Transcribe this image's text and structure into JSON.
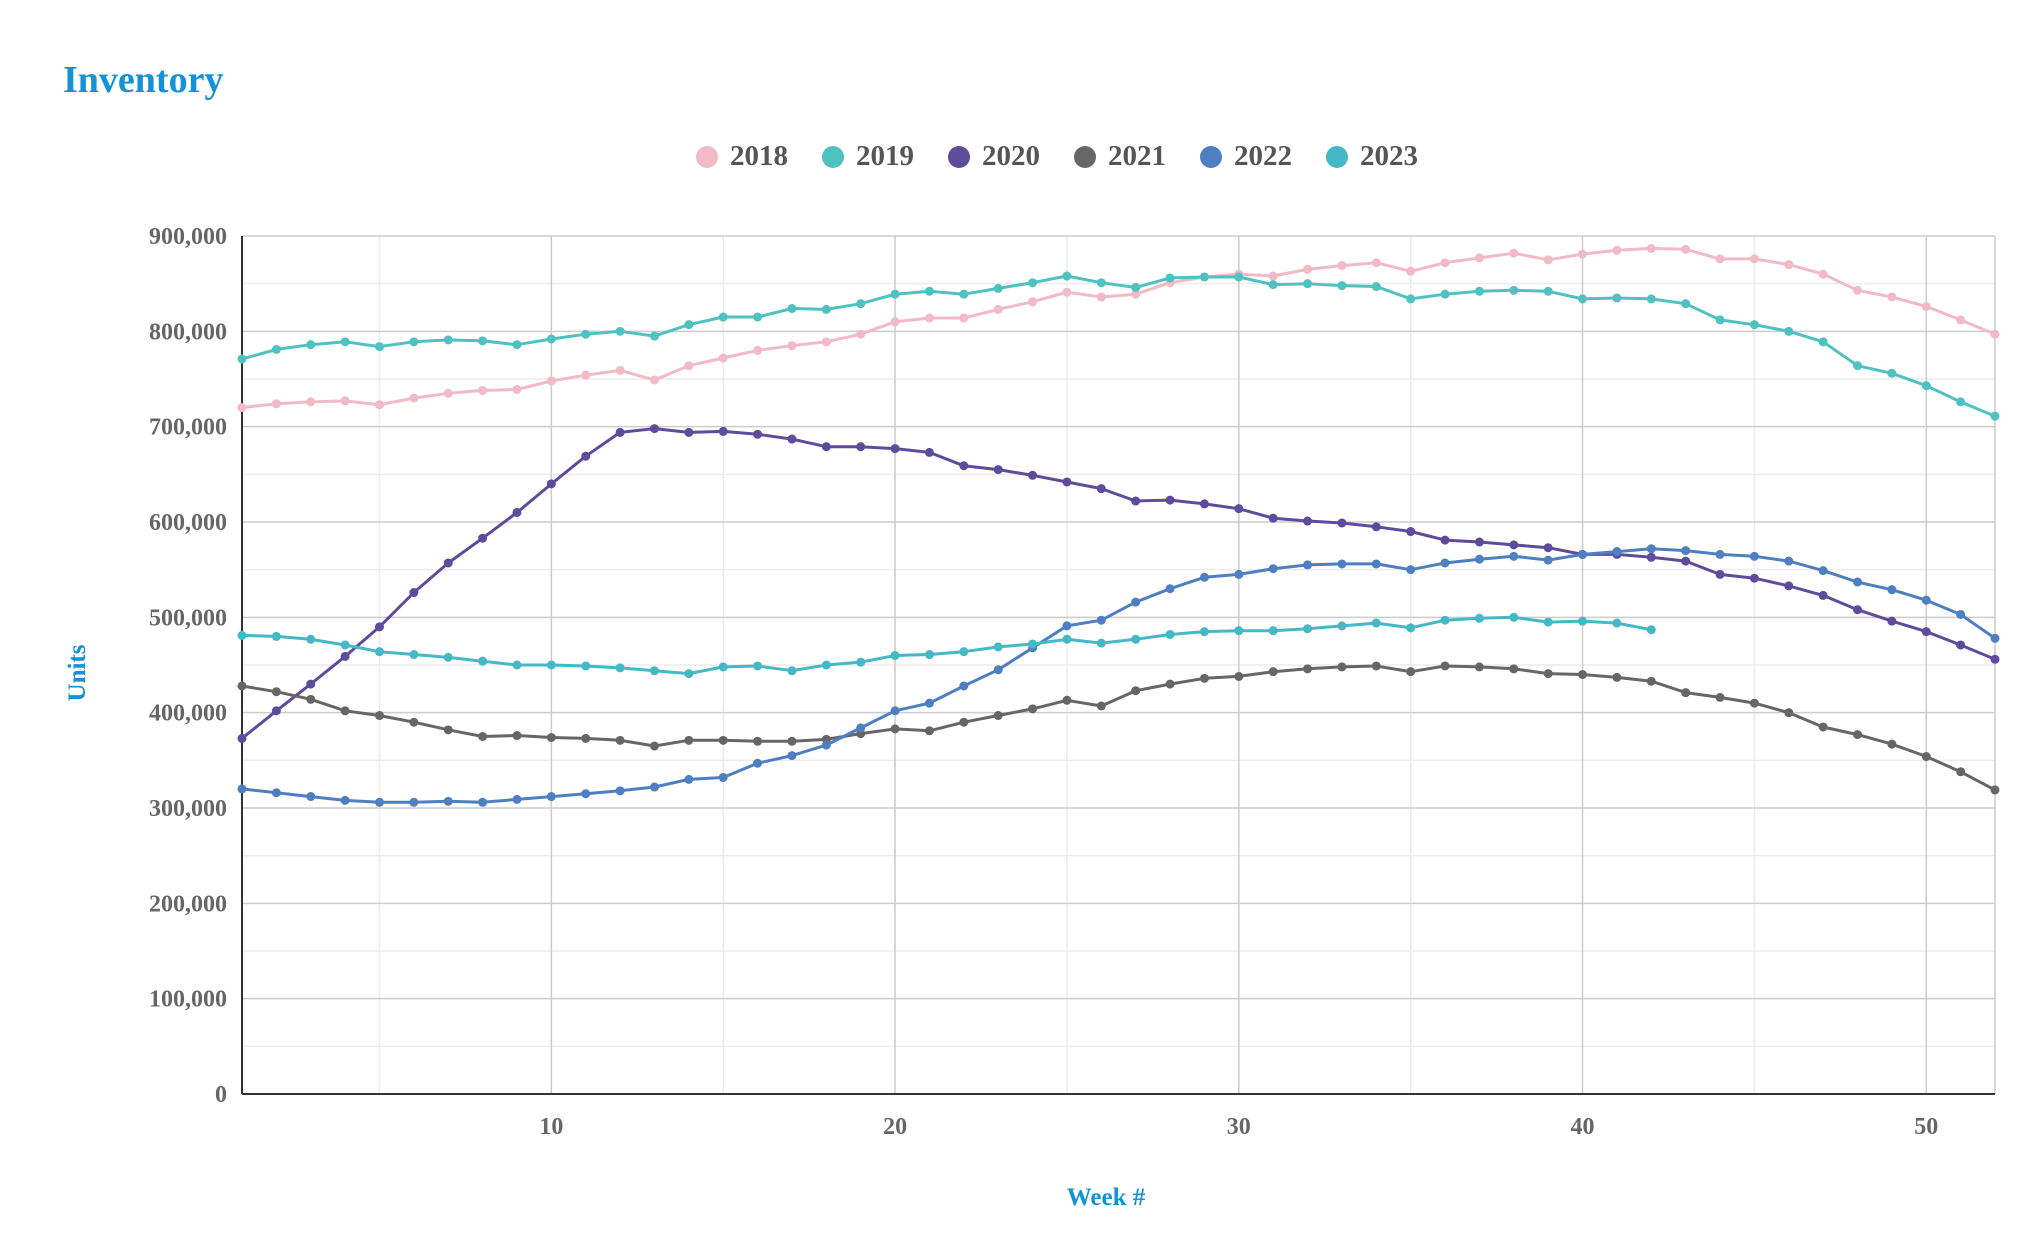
{
  "title": "Inventory",
  "chart_data": {
    "type": "line",
    "title": "Inventory",
    "xlabel": "Week #",
    "ylabel": "Units",
    "xlim": [
      1,
      52
    ],
    "ylim": [
      0,
      900000
    ],
    "x_ticks": [
      10,
      20,
      30,
      40,
      50
    ],
    "y_ticks": [
      {
        "value": 0,
        "label": "0"
      },
      {
        "value": 100000,
        "label": "100,000"
      },
      {
        "value": 200000,
        "label": "200,000"
      },
      {
        "value": 300000,
        "label": "300,000"
      },
      {
        "value": 400000,
        "label": "400,000"
      },
      {
        "value": 500000,
        "label": "500,000"
      },
      {
        "value": 600000,
        "label": "600,000"
      },
      {
        "value": 700000,
        "label": "700,000"
      },
      {
        "value": 800000,
        "label": "800,000"
      },
      {
        "value": 900000,
        "label": "900,000"
      }
    ],
    "grid": true,
    "legend_position": "top-center",
    "series": [
      {
        "name": "2018",
        "color": "#F2B9C6",
        "values": [
          720000,
          724000,
          726000,
          727000,
          723000,
          730000,
          735000,
          738000,
          739000,
          748000,
          754000,
          759000,
          749000,
          764000,
          772000,
          780000,
          785000,
          789000,
          797000,
          810000,
          814000,
          814000,
          823000,
          831000,
          841000,
          836000,
          839000,
          851000,
          857000,
          860000,
          858000,
          865000,
          869000,
          872000,
          863000,
          872000,
          877000,
          882000,
          875000,
          881000,
          885000,
          887000,
          886000,
          876000,
          876000,
          870000,
          860000,
          843000,
          836000,
          826000,
          812000,
          797000
        ]
      },
      {
        "name": "2019",
        "color": "#4DC2C0",
        "values": [
          771000,
          781000,
          786000,
          789000,
          784000,
          789000,
          791000,
          790000,
          786000,
          792000,
          797000,
          800000,
          795000,
          807000,
          815000,
          815000,
          824000,
          823000,
          829000,
          839000,
          842000,
          839000,
          845000,
          851000,
          858000,
          851000,
          846000,
          856000,
          857000,
          857000,
          849000,
          850000,
          848000,
          847000,
          834000,
          839000,
          842000,
          843000,
          842000,
          834000,
          835000,
          834000,
          829000,
          812000,
          807000,
          800000,
          789000,
          764000,
          756000,
          743000,
          726000,
          711000
        ]
      },
      {
        "name": "2020",
        "color": "#5E4B9C",
        "values": [
          373000,
          402000,
          430000,
          459000,
          490000,
          526000,
          557000,
          583000,
          610000,
          640000,
          669000,
          694000,
          698000,
          694000,
          695000,
          692000,
          687000,
          679000,
          679000,
          677000,
          673000,
          659000,
          655000,
          649000,
          642000,
          635000,
          622000,
          623000,
          619000,
          614000,
          604000,
          601000,
          599000,
          595000,
          590000,
          581000,
          579000,
          576000,
          573000,
          566000,
          566000,
          563000,
          559000,
          545000,
          541000,
          533000,
          523000,
          508000,
          496000,
          485000,
          471000,
          456000
        ]
      },
      {
        "name": "2021",
        "color": "#666666",
        "values": [
          428000,
          422000,
          414000,
          402000,
          397000,
          390000,
          382000,
          375000,
          376000,
          374000,
          373000,
          371000,
          365000,
          371000,
          371000,
          370000,
          370000,
          372000,
          378000,
          383000,
          381000,
          390000,
          397000,
          404000,
          413000,
          407000,
          423000,
          430000,
          436000,
          438000,
          443000,
          446000,
          448000,
          449000,
          443000,
          449000,
          448000,
          446000,
          441000,
          440000,
          437000,
          433000,
          421000,
          416000,
          410000,
          400000,
          385000,
          377000,
          367000,
          354000,
          338000,
          319000
        ]
      },
      {
        "name": "2022",
        "color": "#4E7FC0",
        "values": [
          320000,
          316000,
          312000,
          308000,
          306000,
          306000,
          307000,
          306000,
          309000,
          312000,
          315000,
          318000,
          322000,
          330000,
          332000,
          347000,
          355000,
          366000,
          384000,
          402000,
          410000,
          428000,
          445000,
          468000,
          491000,
          497000,
          516000,
          530000,
          542000,
          545000,
          551000,
          555000,
          556000,
          556000,
          550000,
          557000,
          561000,
          564000,
          560000,
          566000,
          569000,
          572000,
          570000,
          566000,
          564000,
          559000,
          549000,
          537000,
          529000,
          518000,
          503000,
          478000
        ]
      },
      {
        "name": "2023",
        "color": "#45B8C5",
        "values": [
          481000,
          480000,
          477000,
          471000,
          464000,
          461000,
          458000,
          454000,
          450000,
          450000,
          449000,
          447000,
          444000,
          441000,
          448000,
          449000,
          444000,
          450000,
          453000,
          460000,
          461000,
          464000,
          469000,
          472000,
          477000,
          473000,
          477000,
          482000,
          485000,
          486000,
          486000,
          488000,
          491000,
          494000,
          489000,
          497000,
          499000,
          500000,
          495000,
          496000,
          494000,
          487000
        ]
      }
    ]
  }
}
